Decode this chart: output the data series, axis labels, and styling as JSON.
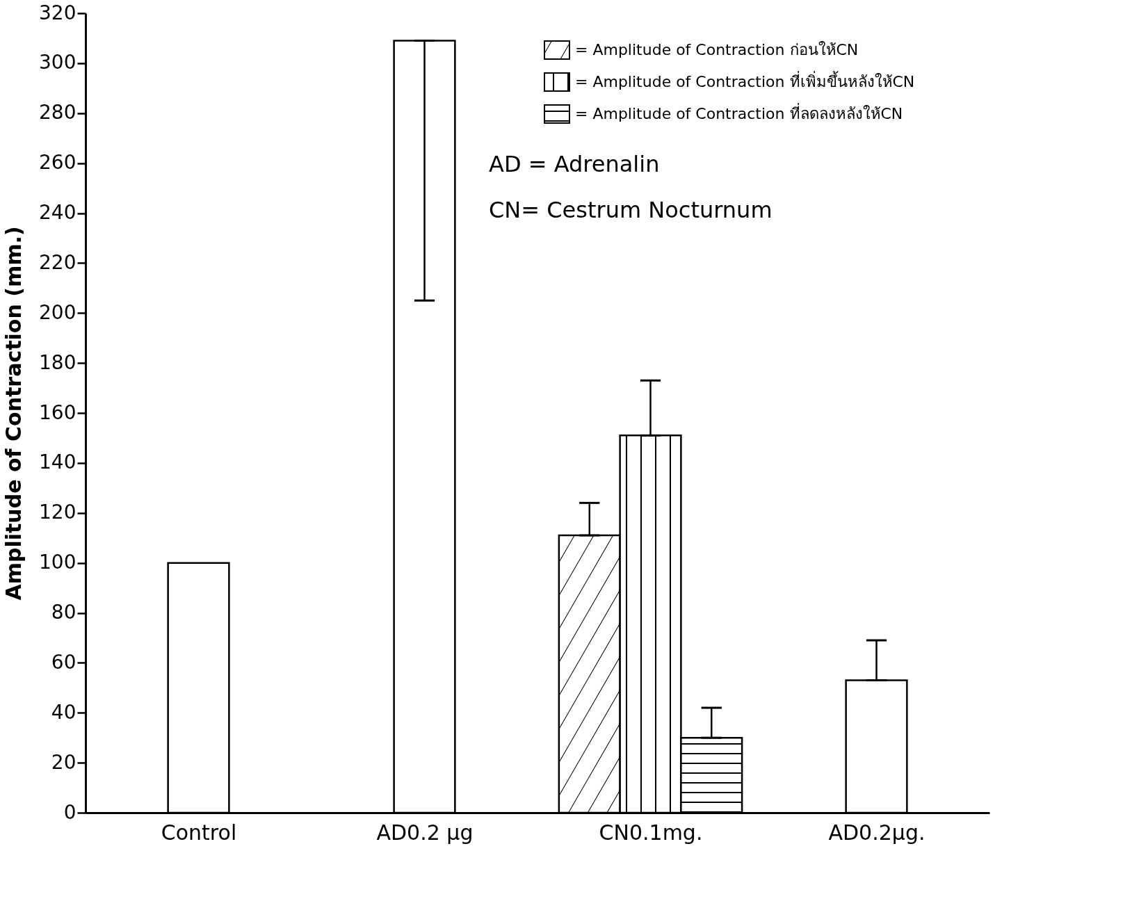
{
  "chart_data": {
    "type": "bar",
    "ylabel": "Amplitude of Contraction (mm.)",
    "categories": [
      "Control",
      "AD0.2 µg",
      "CN0.1mg.",
      "AD0.2µg."
    ],
    "series": [
      {
        "color": "#ffffff",
        "values": [
          100,
          309,
          null,
          53
        ],
        "errors": [
          null,
          [
            205,
            309
          ],
          null,
          [
            53,
            69
          ]
        ]
      },
      {
        "name": "= Amplitude of Contraction ก่อนให้CN",
        "color": "#000000",
        "values": [
          null,
          null,
          111,
          null
        ],
        "errors": [
          null,
          null,
          [
            111,
            124
          ],
          null
        ]
      },
      {
        "name": "= Amplitude of Contraction ที่เพิ่มขึ้นหลังให้CN",
        "color": "#000000",
        "values": [
          null,
          null,
          151,
          null
        ],
        "errors": [
          null,
          null,
          [
            151,
            173
          ],
          null
        ]
      },
      {
        "name": "= Amplitude of Contraction ที่ลดลงหลังให้CN",
        "color": "#000000",
        "values": [
          null,
          null,
          30,
          null
        ],
        "errors": [
          null,
          null,
          [
            30,
            42
          ],
          null
        ]
      }
    ],
    "ylim": [
      0,
      320
    ],
    "yticks": [
      0,
      20,
      40,
      60,
      80,
      100,
      120,
      140,
      160,
      180,
      200,
      220,
      240,
      260,
      280,
      300,
      320
    ],
    "grid": false,
    "legend": "top right",
    "annotations": [
      "AD = Adrenalin",
      "CN= Cestrum Nocturnum"
    ]
  }
}
